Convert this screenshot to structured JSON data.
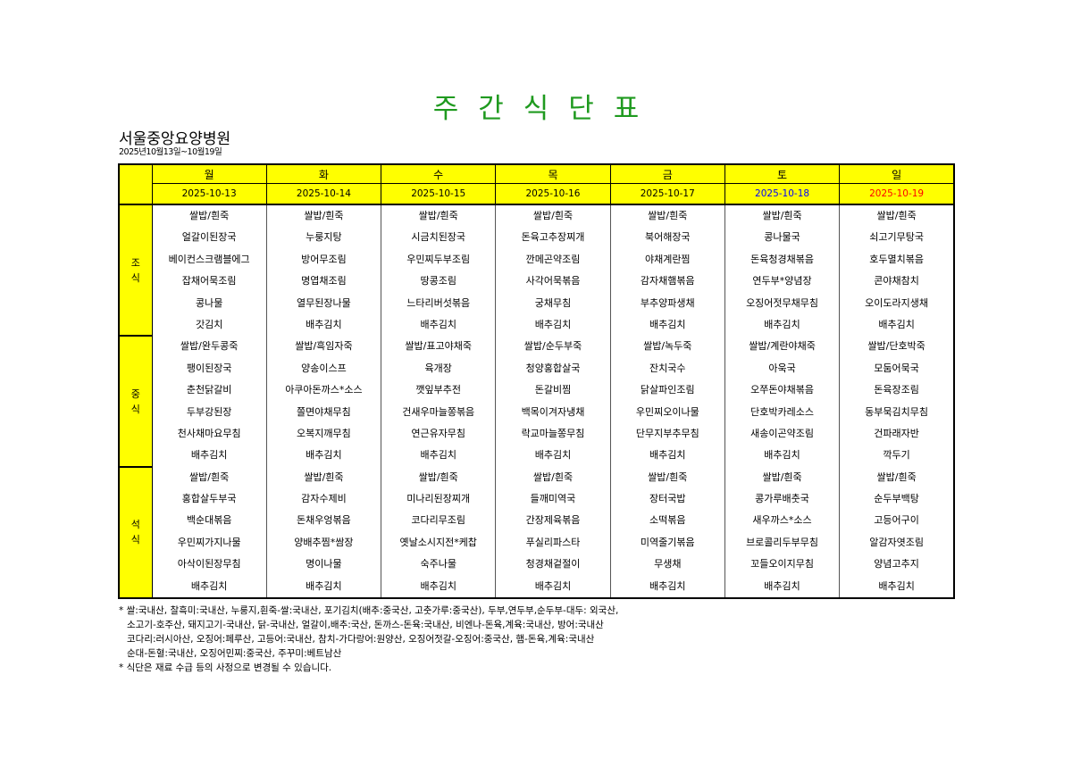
{
  "title": "주간식단표",
  "hospital": "서울중앙요양병원",
  "date_range": "2025년10월13일~10월19일",
  "colors": {
    "title": "#1f9a1f",
    "header_bg": "#ffff00",
    "saturday": "#0000ff",
    "sunday": "#ff0000"
  },
  "days": [
    {
      "name": "월",
      "date": "2025-10-13"
    },
    {
      "name": "화",
      "date": "2025-10-14"
    },
    {
      "name": "수",
      "date": "2025-10-15"
    },
    {
      "name": "목",
      "date": "2025-10-16"
    },
    {
      "name": "금",
      "date": "2025-10-17"
    },
    {
      "name": "토",
      "date": "2025-10-18"
    },
    {
      "name": "일",
      "date": "2025-10-19"
    }
  ],
  "meals": [
    {
      "label": [
        "조",
        "식"
      ],
      "menu": [
        [
          "쌀밥/흰죽",
          "얼갈이된장국",
          "베이컨스크램블에그",
          "잡채어묵조림",
          "콩나물",
          "갓김치"
        ],
        [
          "쌀밥/흰죽",
          "누룽지탕",
          "방어무조림",
          "명엽채조림",
          "열무된장나물",
          "배추김치"
        ],
        [
          "쌀밥/흰죽",
          "시금치된장국",
          "우민찌두부조림",
          "땅콩조림",
          "느타리버섯볶음",
          "배추김치"
        ],
        [
          "쌀밥/흰죽",
          "돈육고추장찌개",
          "깐메곤약조림",
          "사각어묵볶음",
          "궁채무침",
          "배추김치"
        ],
        [
          "쌀밥/흰죽",
          "북어해장국",
          "야채계란찜",
          "감자채햄볶음",
          "부추양파생채",
          "배추김치"
        ],
        [
          "쌀밥/흰죽",
          "콩나물국",
          "돈육청경채볶음",
          "연두부*양념장",
          "오징어젓무채무침",
          "배추김치"
        ],
        [
          "쌀밥/흰죽",
          "쇠고기무탕국",
          "호두멸치볶음",
          "콘야채참치",
          "오이도라지생채",
          "배추김치"
        ]
      ]
    },
    {
      "label": [
        "중",
        "식"
      ],
      "menu": [
        [
          "쌀밥/완두콩죽",
          "팽이된장국",
          "춘천닭갈비",
          "두부강된장",
          "천사채마요무침",
          "배추김치"
        ],
        [
          "쌀밥/흑임자죽",
          "양송이스프",
          "아쿠아돈까스*소스",
          "쫄면야채무침",
          "오복지깨무침",
          "배추김치"
        ],
        [
          "쌀밥/표고야채죽",
          "육개장",
          "깻잎부추전",
          "건새우마늘쫑볶음",
          "연근유자무침",
          "배추김치"
        ],
        [
          "쌀밥/순두부죽",
          "청양홍합살국",
          "돈갈비찜",
          "백목이겨자냉채",
          "락교마늘쫑무침",
          "배추김치"
        ],
        [
          "쌀밥/녹두죽",
          "잔치국수",
          "닭살파인조림",
          "우민찌오이나물",
          "단무지부추무침",
          "배추김치"
        ],
        [
          "쌀밥/계란야채죽",
          "아욱국",
          "오쭈돈야채볶음",
          "단호박카레소스",
          "새송이곤약조림",
          "배추김치"
        ],
        [
          "쌀밥/단호박죽",
          "모둠어묵국",
          "돈육장조림",
          "동부묵김치무침",
          "건파래자반",
          "깍두기"
        ]
      ]
    },
    {
      "label": [
        "석",
        "식"
      ],
      "menu": [
        [
          "쌀밥/흰죽",
          "홍합살두부국",
          "백순대볶음",
          "우민찌가지나물",
          "아삭이된장무침",
          "배추김치"
        ],
        [
          "쌀밥/흰죽",
          "감자수제비",
          "돈채우엉볶음",
          "양배추찜*쌈장",
          "명이나물",
          "배추김치"
        ],
        [
          "쌀밥/흰죽",
          "미나리된장찌개",
          "코다리무조림",
          "옛날소시지전*케찹",
          "숙주나물",
          "배추김치"
        ],
        [
          "쌀밥/흰죽",
          "들깨미역국",
          "간장제육볶음",
          "푸실리파스타",
          "청경채겉절이",
          "배추김치"
        ],
        [
          "쌀밥/흰죽",
          "장터국밥",
          "소떡볶음",
          "미역줄기볶음",
          "무생채",
          "배추김치"
        ],
        [
          "쌀밥/흰죽",
          "콩가루배춧국",
          "새우까스*소스",
          "브로콜리두부무침",
          "꼬들오이지무침",
          "배추김치"
        ],
        [
          "쌀밥/흰죽",
          "순두부백탕",
          "고등어구이",
          "알감자엿조림",
          "양념고추지",
          "배추김치"
        ]
      ]
    }
  ],
  "notes": [
    "* 쌀:국내산, 찰흑미:국내산, 누룽지,흰죽-쌀:국내산, 포기김치(배추:중국산, 고춧가루:중국산), 두부,연두부,순두부-대두: 외국산,",
    "소고기-호주산, 돼지고기-국내산, 닭-국내산, 얼갈이,배추:국산, 돈까스-돈육:국내산, 비엔나-돈육,계육:국내산, 방어:국내산",
    "코다리:러시아산, 오징어:페루산, 고등어:국내산, 참치-가다랑어:원양산, 오징어젓갈-오징어:중국산, 햄-돈육,계육:국내산",
    "순대-돈혈:국내산, 오징어민찌:중국산, 주꾸미:베트남산",
    "* 식단은 재료 수급 등의 사정으로 변경될 수 있습니다."
  ]
}
